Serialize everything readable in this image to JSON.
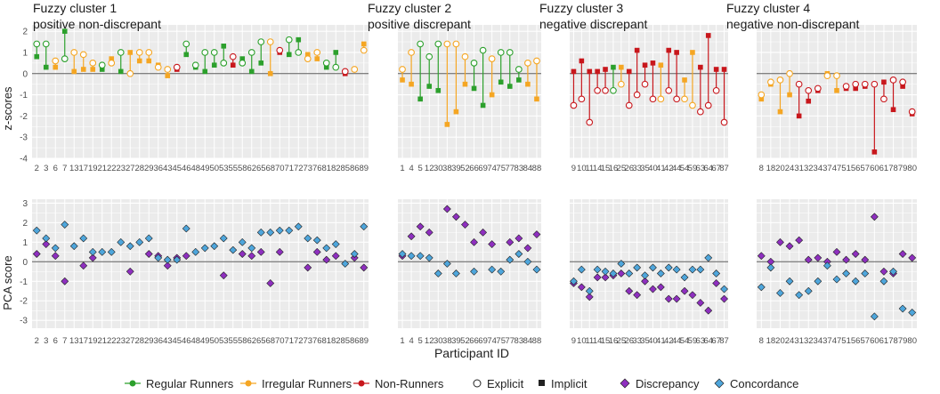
{
  "colors": {
    "regular": "#2ca02c",
    "irregular": "#f5a623",
    "non": "#c8171c",
    "discrepancy": "#8e2fbf",
    "concordance": "#4ea6dc",
    "panel_bg": "#ebebeb",
    "grid": "#ffffff",
    "zero_line": "#5a5a5a"
  },
  "figure": {
    "xlabel": "Participant ID",
    "top_ylabel": "z-scores",
    "bottom_ylabel": "PCA score"
  },
  "legend": {
    "runner_types": [
      {
        "key": "regular",
        "label": "Regular Runners"
      },
      {
        "key": "irregular",
        "label": "Irregular Runners"
      },
      {
        "key": "non",
        "label": "Non-Runners"
      }
    ],
    "shapes": [
      {
        "key": "explicit",
        "label": "Explicit"
      },
      {
        "key": "implicit",
        "label": "Implicit"
      }
    ],
    "pca": [
      {
        "key": "discrepancy",
        "label": "Discrepancy"
      },
      {
        "key": "concordance",
        "label": "Concordance"
      }
    ]
  },
  "chart_data": [
    {
      "type": "scatter",
      "role": "z-scores",
      "panel": 1,
      "title": "Fuzzy cluster 1",
      "subtitle": "positive non-discrepant",
      "ylabel": "z-scores",
      "ylim": [
        -4,
        2.3
      ],
      "yticks": [
        2,
        1,
        0,
        -1,
        -2,
        -3,
        -4
      ],
      "categories": [
        "2",
        "3",
        "6",
        "7",
        "13",
        "17",
        "19",
        "21",
        "22",
        "23",
        "27",
        "28",
        "29",
        "36",
        "43",
        "45",
        "46",
        "48",
        "49",
        "50",
        "53",
        "55",
        "58",
        "62",
        "65",
        "68",
        "70",
        "71",
        "72",
        "73",
        "76",
        "81",
        "82",
        "85",
        "86",
        "89"
      ],
      "runner": [
        "R",
        "R",
        "I",
        "R",
        "I",
        "I",
        "I",
        "R",
        "I",
        "R",
        "I",
        "I",
        "I",
        "I",
        "I",
        "N",
        "R",
        "R",
        "R",
        "R",
        "R",
        "N",
        "R",
        "R",
        "R",
        "I",
        "N",
        "R",
        "R",
        "I",
        "I",
        "R",
        "R",
        "N",
        "I",
        "I"
      ],
      "explicit": [
        1.4,
        1.4,
        0.6,
        0.7,
        1.0,
        0.9,
        0.5,
        0.4,
        0.5,
        1.0,
        0.0,
        1.0,
        1.0,
        0.3,
        0.2,
        0.3,
        1.4,
        0.4,
        1.0,
        1.0,
        0.5,
        0.8,
        0.5,
        1.0,
        1.5,
        1.5,
        1.1,
        1.6,
        1.0,
        0.7,
        1.0,
        0.5,
        0.3,
        0.1,
        0.2,
        1.1
      ],
      "implicit": [
        0.8,
        0.3,
        0.3,
        2.0,
        0.1,
        0.2,
        0.2,
        0.2,
        0.7,
        0.1,
        1.0,
        0.6,
        0.6,
        0.4,
        -0.1,
        0.2,
        0.9,
        0.3,
        0.1,
        0.4,
        1.3,
        0.4,
        0.7,
        0.1,
        0.5,
        0.0,
        1.0,
        0.9,
        1.6,
        0.9,
        0.7,
        0.3,
        1.0,
        0.0,
        0.2,
        1.4
      ]
    },
    {
      "type": "scatter",
      "role": "z-scores",
      "panel": 2,
      "title": "Fuzzy cluster 2",
      "subtitle": "positive discrepant",
      "categories": [
        "1",
        "4",
        "5",
        "12",
        "30",
        "38",
        "39",
        "52",
        "66",
        "69",
        "74",
        "75",
        "77",
        "83",
        "84",
        "88"
      ],
      "runner": [
        "I",
        "I",
        "R",
        "R",
        "R",
        "I",
        "I",
        "I",
        "R",
        "R",
        "I",
        "R",
        "R",
        "R",
        "I",
        "I"
      ],
      "explicit": [
        0.2,
        1.0,
        1.4,
        0.8,
        1.4,
        1.4,
        1.4,
        0.8,
        0.5,
        1.1,
        0.7,
        1.0,
        1.0,
        0.2,
        0.5,
        0.6
      ],
      "implicit": [
        -0.3,
        -0.5,
        -1.2,
        -0.6,
        -0.8,
        -2.4,
        -1.8,
        -0.5,
        -0.7,
        -1.5,
        -1.0,
        -0.4,
        -0.6,
        -0.3,
        -0.5,
        -1.2
      ]
    },
    {
      "type": "scatter",
      "role": "z-scores",
      "panel": 3,
      "title": "Fuzzy cluster 3",
      "subtitle": "negative discrepant",
      "categories": [
        "9",
        "10",
        "11",
        "14",
        "15",
        "16",
        "25",
        "26",
        "33",
        "35",
        "40",
        "41",
        "42",
        "44",
        "54",
        "59",
        "63",
        "64",
        "67",
        "87"
      ],
      "runner": [
        "N",
        "N",
        "N",
        "N",
        "N",
        "R",
        "I",
        "N",
        "N",
        "N",
        "N",
        "I",
        "N",
        "N",
        "I",
        "I",
        "N",
        "N",
        "N",
        "N"
      ],
      "explicit": [
        -1.5,
        -1.2,
        -2.3,
        -0.8,
        -0.8,
        -0.8,
        -0.5,
        -1.5,
        -1.0,
        -0.5,
        -1.2,
        -1.2,
        -0.8,
        -1.2,
        -1.2,
        -1.5,
        -1.8,
        -1.5,
        -0.8,
        -2.3
      ],
      "implicit": [
        0.1,
        0.6,
        0.1,
        0.1,
        0.2,
        0.3,
        0.3,
        0.1,
        1.1,
        0.4,
        0.5,
        0.4,
        1.1,
        1.0,
        -0.3,
        1.0,
        0.3,
        1.8,
        0.2,
        0.2
      ]
    },
    {
      "type": "scatter",
      "role": "z-scores",
      "panel": 4,
      "title": "Fuzzy cluster 4",
      "subtitle": "negative non-discrepant",
      "categories": [
        "8",
        "18",
        "20",
        "24",
        "31",
        "32",
        "34",
        "37",
        "47",
        "51",
        "56",
        "57",
        "60",
        "61",
        "78",
        "79",
        "80"
      ],
      "runner": [
        "I",
        "I",
        "I",
        "I",
        "N",
        "N",
        "N",
        "I",
        "I",
        "N",
        "N",
        "N",
        "N",
        "N",
        "N",
        "N",
        "N"
      ],
      "explicit": [
        -1.0,
        -0.4,
        -0.3,
        0.0,
        -0.5,
        -0.8,
        -0.7,
        -0.1,
        -0.1,
        -0.6,
        -0.5,
        -0.5,
        -0.5,
        -1.2,
        -0.3,
        -0.4,
        -1.8
      ],
      "implicit": [
        -1.2,
        -0.5,
        -1.8,
        -1.0,
        -2.0,
        -1.3,
        -0.8,
        0.0,
        -0.8,
        -0.7,
        -0.7,
        -0.6,
        -3.7,
        -0.4,
        -1.7,
        -0.6,
        -1.9
      ]
    },
    {
      "type": "scatter",
      "role": "pca",
      "panel": 1,
      "ylabel": "PCA score",
      "xlabel": "Participant ID",
      "ylim": [
        -3.4,
        3.2
      ],
      "yticks": [
        3,
        2,
        1,
        0,
        -1,
        -2,
        -3
      ],
      "categories": [
        "2",
        "3",
        "6",
        "7",
        "13",
        "17",
        "19",
        "21",
        "22",
        "23",
        "27",
        "28",
        "29",
        "36",
        "43",
        "45",
        "46",
        "48",
        "49",
        "50",
        "53",
        "55",
        "58",
        "62",
        "65",
        "68",
        "70",
        "71",
        "72",
        "73",
        "76",
        "81",
        "82",
        "85",
        "86",
        "89"
      ],
      "discrepancy": [
        0.4,
        0.9,
        0.3,
        -1.0,
        null,
        -0.2,
        0.2,
        null,
        null,
        null,
        -0.5,
        null,
        0.4,
        0.3,
        -0.2,
        0.2,
        0.3,
        null,
        null,
        null,
        -0.7,
        null,
        0.4,
        0.3,
        0.5,
        -1.1,
        0.5,
        null,
        null,
        -0.3,
        0.5,
        0.1,
        0.3,
        null,
        0.2,
        -0.3
      ],
      "concordance": [
        1.6,
        1.2,
        0.7,
        1.9,
        0.8,
        1.2,
        0.5,
        0.5,
        0.5,
        1.0,
        0.8,
        1.0,
        1.2,
        0.2,
        0.1,
        0.1,
        1.7,
        0.5,
        0.7,
        0.8,
        1.2,
        0.6,
        1.0,
        0.7,
        1.5,
        1.5,
        1.6,
        1.6,
        1.8,
        1.2,
        1.1,
        0.7,
        0.9,
        -0.1,
        0.4,
        1.8
      ]
    },
    {
      "type": "scatter",
      "role": "pca",
      "panel": 2,
      "categories": [
        "1",
        "4",
        "5",
        "12",
        "30",
        "38",
        "39",
        "52",
        "66",
        "69",
        "74",
        "75",
        "77",
        "83",
        "84",
        "88"
      ],
      "discrepancy": [
        0.3,
        1.3,
        1.8,
        1.5,
        null,
        2.7,
        2.3,
        1.9,
        1.0,
        1.5,
        0.9,
        null,
        1.0,
        1.2,
        0.7,
        1.4
      ],
      "concordance": [
        0.4,
        0.3,
        0.3,
        0.2,
        -0.6,
        -0.1,
        -0.6,
        null,
        -0.5,
        null,
        -0.4,
        -0.5,
        0.1,
        0.4,
        0.0,
        -0.4
      ]
    },
    {
      "type": "scatter",
      "role": "pca",
      "panel": 3,
      "categories": [
        "9",
        "10",
        "11",
        "14",
        "15",
        "16",
        "25",
        "26",
        "33",
        "35",
        "40",
        "41",
        "42",
        "44",
        "54",
        "59",
        "63",
        "64",
        "67",
        "87"
      ],
      "discrepancy": [
        -1.1,
        -1.3,
        -1.8,
        -0.8,
        -0.8,
        -0.7,
        -0.6,
        -1.5,
        -1.7,
        -1.0,
        -1.4,
        -1.3,
        -1.9,
        -1.9,
        -1.5,
        -1.7,
        -2.1,
        -2.5,
        -1.1,
        -1.9
      ],
      "concordance": [
        -1.0,
        -0.4,
        -1.5,
        -0.4,
        -0.5,
        -0.6,
        -0.1,
        -0.6,
        -0.3,
        -0.7,
        -0.3,
        -0.6,
        -0.3,
        -0.4,
        -0.8,
        -0.4,
        -0.4,
        0.2,
        -0.6,
        -1.4
      ]
    },
    {
      "type": "scatter",
      "role": "pca",
      "panel": 4,
      "categories": [
        "8",
        "18",
        "20",
        "24",
        "31",
        "32",
        "34",
        "37",
        "47",
        "51",
        "56",
        "57",
        "60",
        "61",
        "78",
        "79",
        "80"
      ],
      "discrepancy": [
        0.3,
        0.0,
        1.0,
        0.8,
        1.1,
        0.1,
        0.2,
        0.0,
        0.5,
        0.1,
        0.4,
        0.1,
        2.3,
        -0.5,
        -0.6,
        0.4,
        0.2
      ],
      "concordance": [
        -1.3,
        -0.3,
        -1.6,
        -1.0,
        -1.7,
        -1.5,
        -1.0,
        -0.2,
        -0.9,
        -0.6,
        -1.0,
        -0.6,
        -2.8,
        -1.0,
        -0.5,
        -2.4,
        -2.6
      ]
    }
  ]
}
